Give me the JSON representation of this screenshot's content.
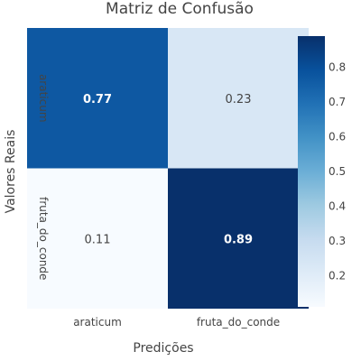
{
  "chart_data": {
    "type": "heatmap",
    "title": "Matriz de Confusão",
    "xlabel": "Predições",
    "ylabel": "Valores Reais",
    "x_categories": [
      "araticum",
      "fruta_do_conde"
    ],
    "y_categories": [
      "araticum",
      "fruta_do_conde"
    ],
    "values": [
      [
        0.77,
        0.23
      ],
      [
        0.11,
        0.89
      ]
    ],
    "cell_labels": [
      [
        "0.77",
        "0.23"
      ],
      [
        "0.11",
        "0.89"
      ]
    ],
    "bold_cells": [
      [
        true,
        false
      ],
      [
        false,
        true
      ]
    ],
    "colorscale": "Blues",
    "color_range": [
      0.11,
      0.89
    ],
    "colorbar_ticks": [
      "0.2",
      "0.3",
      "0.4",
      "0.5",
      "0.6",
      "0.7",
      "0.8"
    ],
    "colorbar_tick_values": [
      0.2,
      0.3,
      0.4,
      0.5,
      0.6,
      0.7,
      0.8
    ],
    "legend_position": "right"
  }
}
